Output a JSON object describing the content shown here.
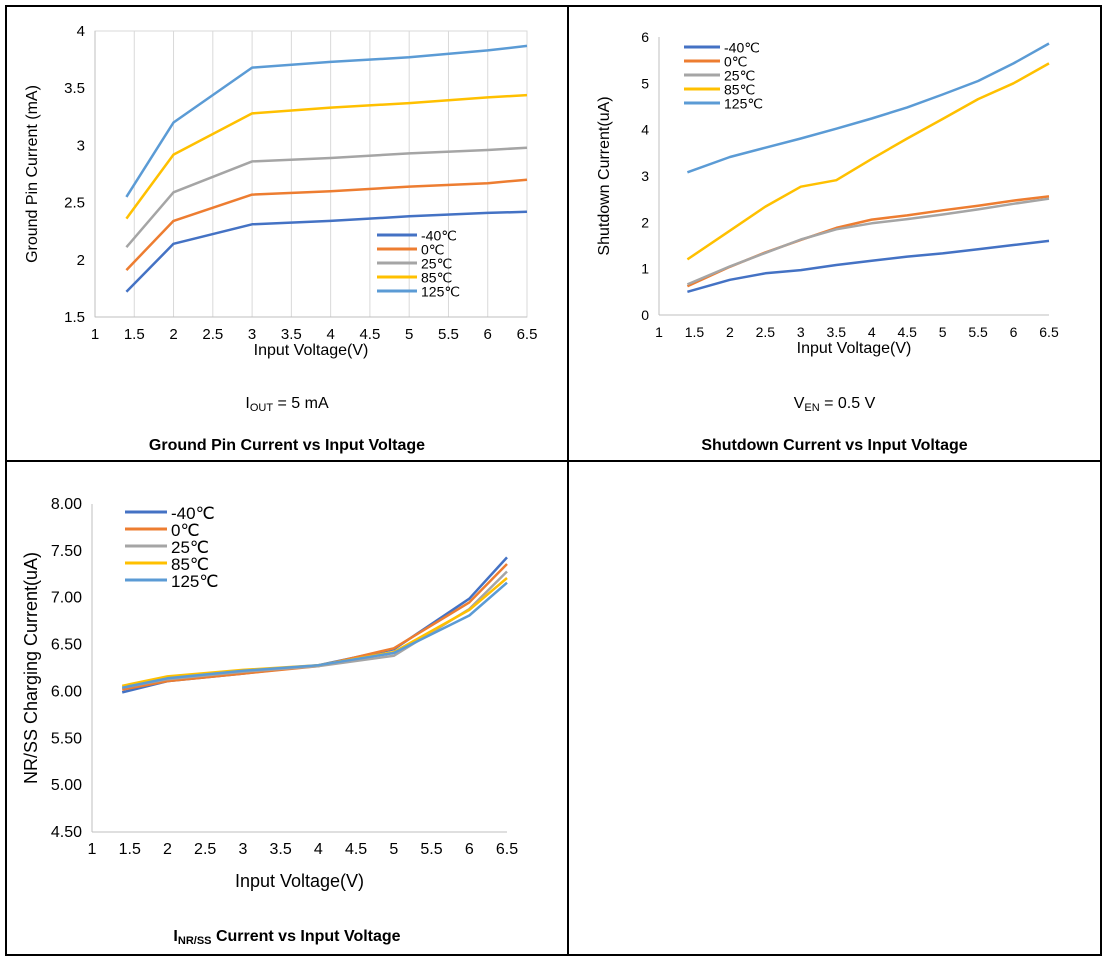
{
  "charts": {
    "ground": {
      "condition": {
        "main": "I",
        "sub": "OUT",
        "rest": " = 5 mA"
      },
      "caption": "Ground Pin Current vs Input Voltage"
    },
    "shutdown": {
      "condition": {
        "main": "V",
        "sub": "EN",
        "rest": " = 0.5 V"
      },
      "caption": "Shutdown Current vs Input Voltage"
    },
    "nrss": {
      "caption": {
        "main": "I",
        "sub": "NR/SS",
        "rest": " Current vs Input Voltage"
      }
    }
  },
  "chart_data": [
    {
      "type": "line",
      "title": "",
      "xlabel": "Input Voltage(V)",
      "ylabel": "Ground Pin Current (mA)",
      "xlim": [
        1,
        6.5
      ],
      "ylim": [
        1.5,
        4
      ],
      "xticks": [
        "1",
        "1.5",
        "2",
        "2.5",
        "3",
        "3.5",
        "4",
        "4.5",
        "5",
        "5.5",
        "6",
        "6.5"
      ],
      "yticks": [
        "1.5",
        "2",
        "2.5",
        "3",
        "3.5",
        "4"
      ],
      "legend_position": "bottom-right",
      "grid": "vertical",
      "x": [
        1.4,
        2,
        3,
        6.5
      ],
      "series": [
        {
          "name": "-40℃",
          "color": "#4472C4",
          "values": [
            1.72,
            2.14,
            2.31,
            2.42
          ],
          "extra": {
            "x": [
              4,
              5,
              6
            ],
            "y": [
              2.34,
              2.38,
              2.41
            ]
          }
        },
        {
          "name": "0℃",
          "color": "#ED7D31",
          "values": [
            1.91,
            2.34,
            2.57,
            2.7
          ],
          "extra": {
            "x": [
              4,
              5,
              6
            ],
            "y": [
              2.6,
              2.64,
              2.67
            ]
          }
        },
        {
          "name": "25℃",
          "color": "#A5A5A5",
          "values": [
            2.11,
            2.59,
            2.86,
            2.98
          ],
          "extra": {
            "x": [
              4,
              5,
              6
            ],
            "y": [
              2.89,
              2.93,
              2.96
            ]
          }
        },
        {
          "name": "85℃",
          "color": "#FFC000",
          "values": [
            2.36,
            2.92,
            3.28,
            3.44
          ],
          "extra": {
            "x": [
              4,
              5,
              6
            ],
            "y": [
              3.33,
              3.37,
              3.42
            ]
          }
        },
        {
          "name": "125℃",
          "color": "#5B9BD5",
          "values": [
            2.55,
            3.2,
            3.68,
            3.87
          ],
          "extra": {
            "x": [
              4,
              5,
              6
            ],
            "y": [
              3.73,
              3.77,
              3.83
            ]
          }
        }
      ]
    },
    {
      "type": "line",
      "title": "",
      "xlabel": "Input Voltage(V)",
      "ylabel": "Shutdown Current(uA)",
      "xlim": [
        1,
        6.5
      ],
      "ylim": [
        0,
        6
      ],
      "xticks": [
        "1",
        "1.5",
        "2",
        "2.5",
        "3",
        "3.5",
        "4",
        "4.5",
        "5",
        "5.5",
        "6",
        "6.5"
      ],
      "yticks": [
        "0",
        "1",
        "2",
        "3",
        "4",
        "5",
        "6"
      ],
      "legend_position": "top-left",
      "grid": "none",
      "x": [
        1.4,
        2,
        2.5,
        3,
        3.5,
        4,
        4.5,
        5,
        5.5,
        6,
        6.5
      ],
      "series": [
        {
          "name": "-40℃",
          "color": "#4472C4",
          "values": [
            0.5,
            0.76,
            0.9,
            0.97,
            1.08,
            1.17,
            1.26,
            1.33,
            1.42,
            1.51,
            1.6
          ]
        },
        {
          "name": "0℃",
          "color": "#ED7D31",
          "values": [
            0.62,
            1.04,
            1.35,
            1.62,
            1.88,
            2.06,
            2.15,
            2.26,
            2.36,
            2.47,
            2.56
          ]
        },
        {
          "name": "25℃",
          "color": "#A5A5A5",
          "values": [
            0.66,
            1.05,
            1.34,
            1.63,
            1.85,
            1.98,
            2.07,
            2.17,
            2.28,
            2.4,
            2.51
          ]
        },
        {
          "name": "85℃",
          "color": "#FFC000",
          "values": [
            1.2,
            1.82,
            2.34,
            2.77,
            2.91,
            3.37,
            3.81,
            4.23,
            4.66,
            5.0,
            5.43
          ]
        },
        {
          "name": "125℃",
          "color": "#5B9BD5",
          "values": [
            3.08,
            3.41,
            3.61,
            3.81,
            4.02,
            4.24,
            4.48,
            4.76,
            5.05,
            5.43,
            5.86
          ]
        }
      ]
    },
    {
      "type": "line",
      "title": "",
      "xlabel": "Input Voltage(V)",
      "ylabel": "NR/SS Charging Current(uA)",
      "xlim": [
        1,
        6.5
      ],
      "ylim": [
        4.5,
        8
      ],
      "xticks": [
        "1",
        "1.5",
        "2",
        "2.5",
        "3",
        "3.5",
        "4",
        "4.5",
        "5",
        "5.5",
        "6",
        "6.5"
      ],
      "yticks": [
        "4.50",
        "5.00",
        "5.50",
        "6.00",
        "6.50",
        "7.00",
        "7.50",
        "8.00"
      ],
      "legend_position": "top-left",
      "grid": "none",
      "x": [
        1.4,
        2,
        3,
        4,
        5,
        6,
        6.5
      ],
      "series": [
        {
          "name": "-40℃",
          "color": "#4472C4",
          "values": [
            5.99,
            6.11,
            6.19,
            6.28,
            6.45,
            6.99,
            7.43
          ]
        },
        {
          "name": "0℃",
          "color": "#ED7D31",
          "values": [
            6.02,
            6.11,
            6.19,
            6.27,
            6.46,
            6.95,
            7.36
          ]
        },
        {
          "name": "25℃",
          "color": "#A5A5A5",
          "values": [
            6.04,
            6.13,
            6.21,
            6.27,
            6.38,
            6.88,
            7.28
          ]
        },
        {
          "name": "85℃",
          "color": "#FFC000",
          "values": [
            6.06,
            6.16,
            6.23,
            6.28,
            6.42,
            6.87,
            7.21
          ]
        },
        {
          "name": "125℃",
          "color": "#5B9BD5",
          "values": [
            6.04,
            6.14,
            6.22,
            6.28,
            6.41,
            6.81,
            7.16
          ]
        }
      ]
    }
  ]
}
